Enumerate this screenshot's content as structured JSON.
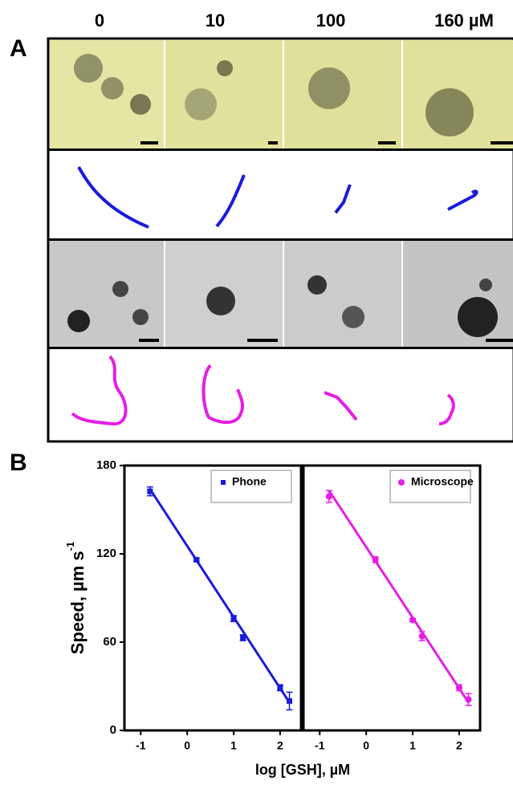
{
  "panel_a": {
    "label": "A",
    "columns": [
      "0",
      "10",
      "100",
      "160 µM"
    ]
  },
  "panel_b": {
    "label": "B"
  },
  "chart_data": [
    {
      "type": "scatter",
      "ylabel": "Speed, µm s",
      "ylabel_sup": "-1",
      "xlabel": "log [GSH], µM",
      "xlim": [
        -1.35,
        2.45
      ],
      "ylim": [
        0,
        180
      ],
      "xticks": [
        -1,
        0,
        1,
        2
      ],
      "yticks": [
        0,
        60,
        120,
        180
      ],
      "legend": "upper right",
      "series": [
        {
          "name": "Phone",
          "color": "#1a1adc",
          "marker": "square",
          "x": [
            -0.8,
            0.2,
            1,
            1.2,
            2,
            2.2
          ],
          "values": [
            162.5,
            116,
            76,
            63,
            29,
            20
          ],
          "errors": [
            3,
            1,
            2,
            2,
            2,
            6
          ],
          "fit": {
            "x": [
              -0.8,
              2.2
            ],
            "values": [
              164,
              19
            ]
          }
        }
      ]
    },
    {
      "type": "scatter",
      "xlim": [
        -1.35,
        2.45
      ],
      "ylim": [
        0,
        180
      ],
      "xticks": [
        -1,
        0,
        1,
        2
      ],
      "legend": "upper right",
      "series": [
        {
          "name": "Microscope",
          "color": "#e61ee6",
          "marker": "circle",
          "x": [
            -0.8,
            0.2,
            1,
            1.2,
            2,
            2.2
          ],
          "values": [
            159,
            116,
            75,
            64,
            29,
            21
          ],
          "errors": [
            4,
            2,
            1,
            3,
            2,
            4
          ],
          "fit": {
            "x": [
              -0.8,
              2.2
            ],
            "values": [
              163,
              19
            ]
          }
        }
      ]
    }
  ]
}
